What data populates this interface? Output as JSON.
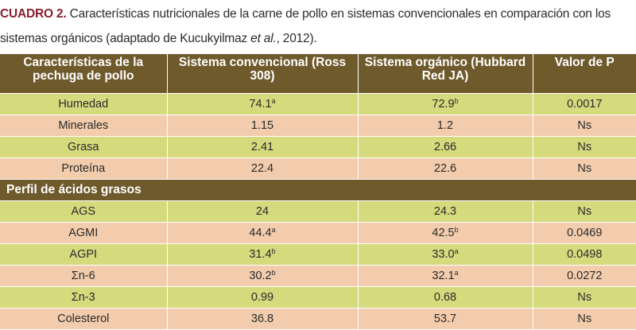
{
  "caption": {
    "label": "CUADRO 2.",
    "text_line1": "Características nutricionales de la carne de pollo en sistemas convencionales en comparación con los",
    "text_line2_before": "sistemas orgánicos (adaptado de Kucukyilmaz",
    "text_line2_italic": "et al.",
    "text_line2_after": ", 2012)."
  },
  "table": {
    "headers": [
      "Características de la pechuga de pollo",
      "Sistema convencional (Ross 308)",
      "Sistema orgánico (Hubbard Red JA)",
      "Valor de P"
    ],
    "group1_rows": [
      {
        "name": "Humedad",
        "conv": "74.1",
        "conv_sup": "a",
        "org": "72.9",
        "org_sup": "b",
        "p": "0.0017"
      },
      {
        "name": "Minerales",
        "conv": "1.15",
        "conv_sup": "",
        "org": "1.2",
        "org_sup": "",
        "p": "Ns"
      },
      {
        "name": "Grasa",
        "conv": "2.41",
        "conv_sup": "",
        "org": "2.66",
        "org_sup": "",
        "p": "Ns"
      },
      {
        "name": "Proteína",
        "conv": "22.4",
        "conv_sup": "",
        "org": "22.6",
        "org_sup": "",
        "p": "Ns"
      }
    ],
    "section_title": "Perfil de ácidos grasos",
    "group2_rows": [
      {
        "name": "AGS",
        "conv": "24",
        "conv_sup": "",
        "org": "24.3",
        "org_sup": "",
        "p": "Ns"
      },
      {
        "name": "AGMI",
        "conv": "44.4",
        "conv_sup": "a",
        "org": "42.5",
        "org_sup": "b",
        "p": "0.0469"
      },
      {
        "name": "AGPI",
        "conv": "31.4",
        "conv_sup": "b",
        "org": "33.0",
        "org_sup": "a",
        "p": "0.0498"
      },
      {
        "name": "Σn-6",
        "conv": "30.2",
        "conv_sup": "b",
        "org": "32.1",
        "org_sup": "a",
        "p": "0.0272"
      },
      {
        "name": "Σn-3",
        "conv": "0.99",
        "conv_sup": "",
        "org": "0.68",
        "org_sup": "",
        "p": "Ns"
      },
      {
        "name": "Colesterol",
        "conv": "36.8",
        "conv_sup": "",
        "org": "53.7",
        "org_sup": "",
        "p": "Ns"
      }
    ]
  },
  "colors": {
    "header_bg": "#6f5a2c",
    "row_green": "#d5da7d",
    "row_peach": "#f2ccac",
    "label_red": "#8a1f2d"
  }
}
